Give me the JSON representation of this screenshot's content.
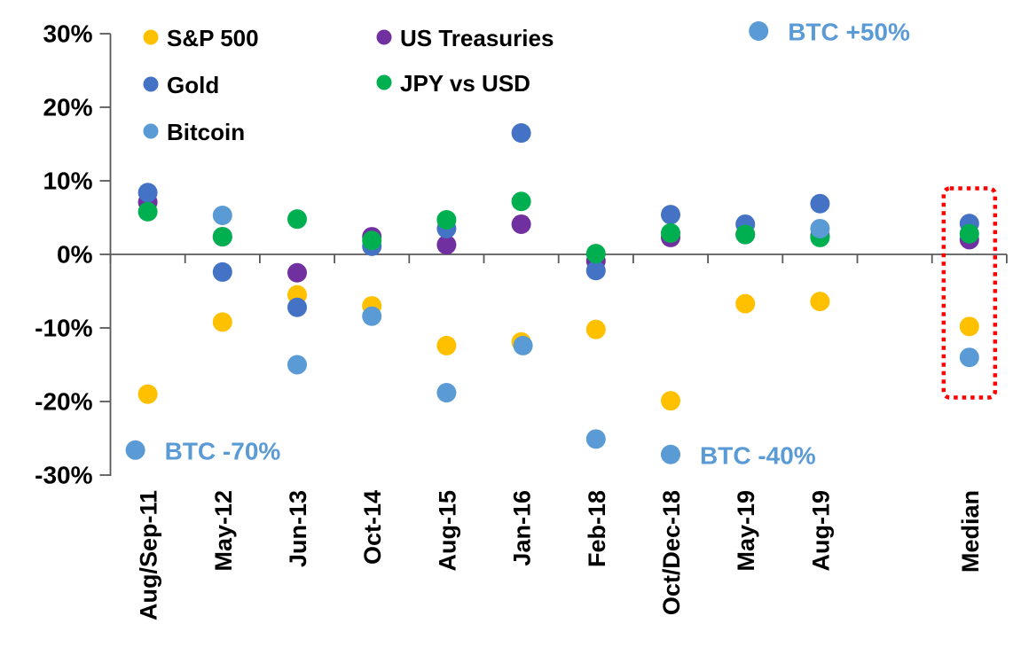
{
  "chart_data": {
    "type": "scatter",
    "title": "",
    "xlabel": "",
    "ylabel": "",
    "grid": false,
    "categories": [
      "Aug/Sep-11",
      "May-12",
      "Jun-13",
      "Oct-14",
      "Aug-15",
      "Jan-16",
      "Feb-18",
      "Oct/Dec-18",
      "May-19",
      "Aug-19",
      "",
      "Median"
    ],
    "y_axis": {
      "ticks": [
        "30%",
        "20%",
        "10%",
        "0%",
        "-10%",
        "-20%",
        "-30%"
      ],
      "tick_values": [
        30,
        20,
        10,
        0,
        -10,
        -20,
        -30
      ],
      "ylim": [
        -30,
        30
      ],
      "unit": "%"
    },
    "series": [
      {
        "name": "S&P 500",
        "color": "#FFC000",
        "values": [
          -19.0,
          -9.2,
          -5.5,
          -7.0,
          -12.4,
          -11.9,
          -10.2,
          -19.9,
          -6.7,
          -6.4,
          null,
          -9.8
        ]
      },
      {
        "name": "Gold",
        "color": "#4472C4",
        "values": [
          8.4,
          -2.4,
          -7.2,
          1.1,
          3.5,
          16.5,
          -2.2,
          5.4,
          4.1,
          6.9,
          null,
          4.2
        ]
      },
      {
        "name": "Bitcoin",
        "color": "#5B9BD5",
        "values": [
          -26.6,
          5.3,
          -15.0,
          -8.4,
          -18.8,
          -12.4,
          -25.1,
          -27.2,
          50,
          3.5,
          null,
          -14.0
        ]
      },
      {
        "name": "US Treasuries",
        "color": "#7030A0",
        "values": [
          7.1,
          2.4,
          -2.5,
          2.4,
          1.3,
          4.1,
          -0.9,
          2.3,
          2.7,
          2.5,
          null,
          2.0
        ]
      },
      {
        "name": "JPY vs USD",
        "color": "#00B050",
        "values": [
          5.8,
          2.4,
          4.8,
          1.9,
          4.7,
          7.2,
          0.1,
          2.9,
          2.7,
          2.3,
          null,
          2.8
        ]
      }
    ],
    "draw_order": [
      "S&P 500",
      "US Treasuries",
      "Gold",
      "JPY vs USD",
      "Bitcoin"
    ],
    "legend": {
      "position": "top-left",
      "columns": [
        [
          "S&P 500",
          "Gold",
          "Bitcoin"
        ],
        [
          "US Treasuries",
          "JPY vs USD"
        ]
      ]
    },
    "annotations": [
      {
        "text": "BTC -70%",
        "series": "Bitcoin",
        "category": "Aug/Sep-11",
        "color": "#5B9BD5"
      },
      {
        "text": "BTC -40%",
        "series": "Bitcoin",
        "category": "Oct/Dec-18",
        "color": "#5B9BD5"
      },
      {
        "text": "BTC +50%",
        "series": "Bitcoin",
        "category": "May-19",
        "color": "#5B9BD5"
      }
    ],
    "highlight_box": {
      "category": "Median",
      "color": "#FF0000",
      "style": "dotted"
    },
    "layout": {
      "bitcoin_dx_offsets": {
        "Aug/Sep-11": -14,
        "Jan-16": 2,
        "May-19": 15
      },
      "axis_color": "#595959"
    }
  }
}
